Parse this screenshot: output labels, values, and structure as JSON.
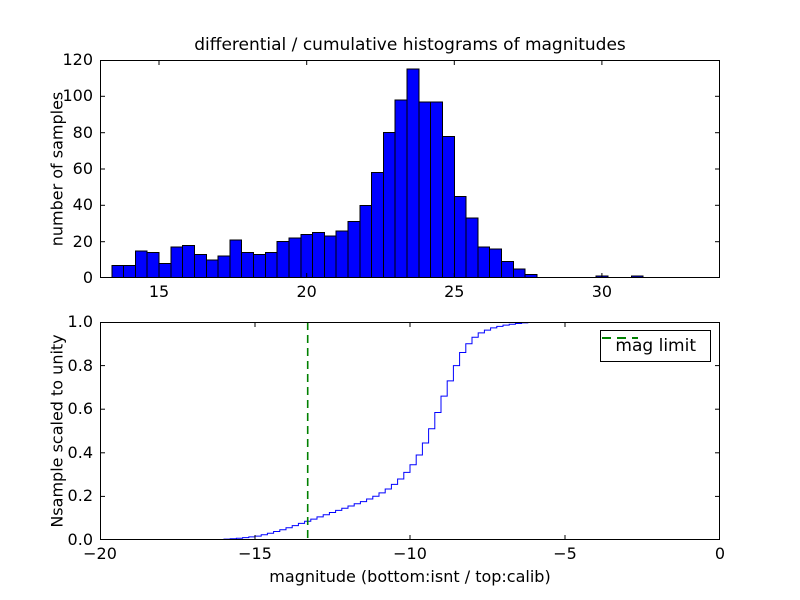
{
  "figure": {
    "title": "differential / cumulative histograms of magnitudes",
    "background": "#ffffff",
    "frame_color": "#000000"
  },
  "chart_data": [
    {
      "type": "bar",
      "subtype": "histogram",
      "title": "differential / cumulative histograms of magnitudes",
      "xlabel": "",
      "ylabel": "number of samples",
      "xlim": [
        13,
        34
      ],
      "ylim": [
        0,
        120
      ],
      "xticks": [
        15,
        20,
        25,
        30
      ],
      "xtick_labels": [
        "15",
        "20",
        "25",
        "30"
      ],
      "yticks": [
        0,
        20,
        40,
        60,
        80,
        100,
        120
      ],
      "ytick_labels": [
        "0",
        "20",
        "40",
        "60",
        "80",
        "100",
        "120"
      ],
      "grid": false,
      "bar_color": "#0000ff",
      "bar_edge_color": "#000000",
      "bin_width": 0.4,
      "bin_centers": [
        13.6,
        14.0,
        14.4,
        14.8,
        15.2,
        15.6,
        16.0,
        16.4,
        16.8,
        17.2,
        17.6,
        18.0,
        18.4,
        18.8,
        19.2,
        19.6,
        20.0,
        20.4,
        20.8,
        21.2,
        21.6,
        22.0,
        22.4,
        22.8,
        23.2,
        23.6,
        24.0,
        24.4,
        24.8,
        25.2,
        25.6,
        26.0,
        26.4,
        26.8,
        27.2,
        27.6,
        30.0,
        31.2
      ],
      "counts": [
        7,
        7,
        15,
        14,
        8,
        17,
        18,
        13,
        10,
        12,
        21,
        14,
        13,
        14,
        20,
        22,
        24,
        25,
        23,
        26,
        31,
        40,
        58,
        80,
        98,
        115,
        97,
        97,
        78,
        45,
        33,
        17,
        16,
        9,
        5,
        2,
        1,
        1
      ]
    },
    {
      "type": "line",
      "subtype": "cumulative-step",
      "title": "",
      "xlabel": "magnitude (bottom:isnt / top:calib)",
      "ylabel": "Nsample scaled to unity",
      "xlim": [
        -20,
        0
      ],
      "ylim": [
        0,
        1
      ],
      "xticks": [
        -20,
        -15,
        -10,
        -5,
        0
      ],
      "xtick_labels": [
        "−20",
        "−15",
        "−10",
        "−5",
        "0"
      ],
      "yticks": [
        0,
        0.2,
        0.4,
        0.6,
        0.8,
        1.0
      ],
      "ytick_labels": [
        "0.0",
        "0.2",
        "0.4",
        "0.6",
        "0.8",
        "1.0"
      ],
      "grid": false,
      "line_color": "#0000ff",
      "x": [
        -20,
        -16.4,
        -16.2,
        -16,
        -15.8,
        -15.6,
        -15.4,
        -15.2,
        -15,
        -14.8,
        -14.6,
        -14.4,
        -14.2,
        -14,
        -13.8,
        -13.6,
        -13.4,
        -13.2,
        -13,
        -12.8,
        -12.6,
        -12.4,
        -12.2,
        -12,
        -11.8,
        -11.6,
        -11.4,
        -11.2,
        -11,
        -10.8,
        -10.6,
        -10.4,
        -10.2,
        -10,
        -9.8,
        -9.6,
        -9.4,
        -9.2,
        -9,
        -8.8,
        -8.6,
        -8.4,
        -8.2,
        -8,
        -7.8,
        -7.6,
        -7.4,
        -7.2,
        -7,
        -6.8,
        -6.6,
        -6.4,
        -6.2,
        -6,
        0
      ],
      "y": [
        0,
        0,
        0.002,
        0.004,
        0.006,
        0.008,
        0.011,
        0.014,
        0.018,
        0.024,
        0.031,
        0.039,
        0.047,
        0.056,
        0.066,
        0.076,
        0.086,
        0.096,
        0.106,
        0.116,
        0.126,
        0.136,
        0.146,
        0.156,
        0.166,
        0.176,
        0.188,
        0.201,
        0.216,
        0.234,
        0.255,
        0.28,
        0.31,
        0.345,
        0.39,
        0.445,
        0.51,
        0.585,
        0.66,
        0.73,
        0.8,
        0.86,
        0.9,
        0.93,
        0.95,
        0.963,
        0.973,
        0.98,
        0.986,
        0.99,
        0.993,
        0.996,
        0.998,
        1,
        1
      ],
      "vline": {
        "x": -13.3,
        "color": "#008000",
        "style": "dashed",
        "label": "mag limit"
      },
      "legend": {
        "position": "upper right",
        "entries": [
          {
            "label": "mag limit",
            "color": "#008000",
            "style": "dashed"
          }
        ]
      }
    }
  ]
}
